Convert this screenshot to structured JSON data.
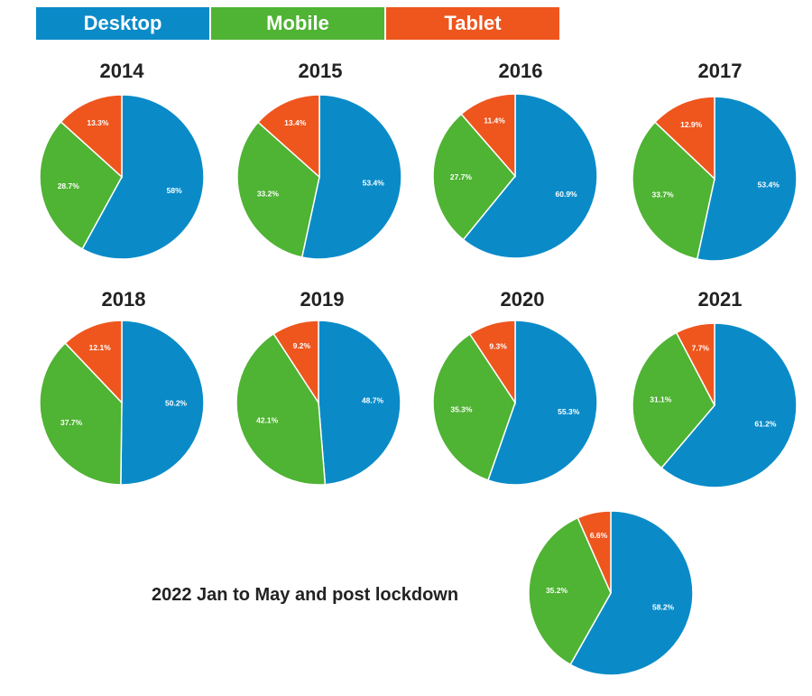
{
  "legend": [
    {
      "label": "Desktop",
      "color": "#0a8bc8"
    },
    {
      "label": "Mobile",
      "color": "#4fb333"
    },
    {
      "label": "Tablet",
      "color": "#ee561e"
    }
  ],
  "chart_data": [
    {
      "type": "pie",
      "title": "2014",
      "categories": [
        "Desktop",
        "Mobile",
        "Tablet"
      ],
      "values": [
        58,
        28.7,
        13.3
      ],
      "labels": [
        "58%",
        "28.7%",
        "13.3%"
      ]
    },
    {
      "type": "pie",
      "title": "2015",
      "categories": [
        "Desktop",
        "Mobile",
        "Tablet"
      ],
      "values": [
        53.4,
        33.2,
        13.4
      ],
      "labels": [
        "53.4%",
        "33.2%",
        "13.4%"
      ]
    },
    {
      "type": "pie",
      "title": "2016",
      "categories": [
        "Desktop",
        "Mobile",
        "Tablet"
      ],
      "values": [
        60.9,
        27.7,
        11.4
      ],
      "labels": [
        "60.9%",
        "27.7%",
        "11.4%"
      ]
    },
    {
      "type": "pie",
      "title": "2017",
      "categories": [
        "Desktop",
        "Mobile",
        "Tablet"
      ],
      "values": [
        53.4,
        33.7,
        12.9
      ],
      "labels": [
        "53.4%",
        "33.7%",
        "12.9%"
      ]
    },
    {
      "type": "pie",
      "title": "2018",
      "categories": [
        "Desktop",
        "Mobile",
        "Tablet"
      ],
      "values": [
        50.2,
        37.7,
        12.1
      ],
      "labels": [
        "50.2%",
        "37.7%",
        "12.1%"
      ]
    },
    {
      "type": "pie",
      "title": "2019",
      "categories": [
        "Desktop",
        "Mobile",
        "Tablet"
      ],
      "values": [
        48.7,
        42.1,
        9.2
      ],
      "labels": [
        "48.7%",
        "42.1%",
        "9.2%"
      ]
    },
    {
      "type": "pie",
      "title": "2020",
      "categories": [
        "Desktop",
        "Mobile",
        "Tablet"
      ],
      "values": [
        55.3,
        35.3,
        9.3
      ],
      "labels": [
        "55.3%",
        "35.3%",
        "9.3%"
      ]
    },
    {
      "type": "pie",
      "title": "2021",
      "categories": [
        "Desktop",
        "Mobile",
        "Tablet"
      ],
      "values": [
        61.2,
        31.1,
        7.7
      ],
      "labels": [
        "61.2%",
        "31.1%",
        "7.7%"
      ]
    },
    {
      "type": "pie",
      "title": "2022 Jan to May and post lockdown",
      "categories": [
        "Desktop",
        "Mobile",
        "Tablet"
      ],
      "values": [
        58.2,
        35.2,
        6.6
      ],
      "labels": [
        "58.2%",
        "35.2%",
        "6.6%"
      ]
    }
  ]
}
